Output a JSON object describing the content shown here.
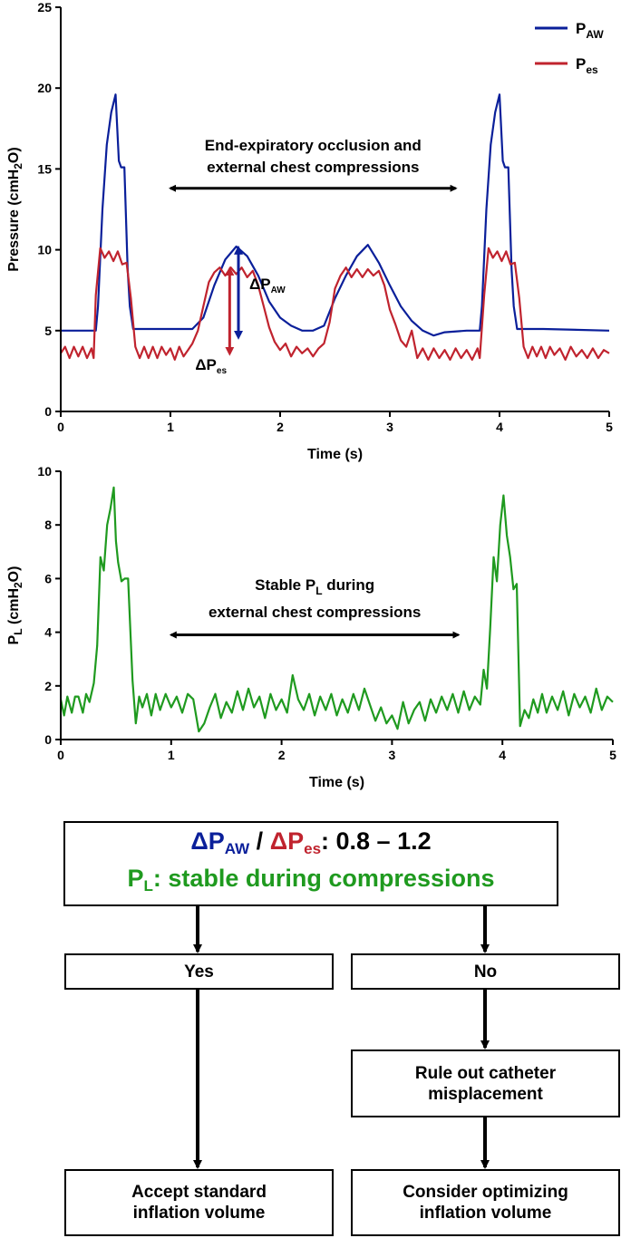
{
  "chart_data": [
    {
      "type": "line",
      "xlabel": "Time (s)",
      "ylabel": "Pressure (cmH2O)",
      "xlim": [
        0,
        5
      ],
      "ylim": [
        0,
        25
      ],
      "xticks": [
        "0",
        "1",
        "2",
        "3",
        "4",
        "5"
      ],
      "yticks": [
        "0",
        "5",
        "10",
        "15",
        "20",
        "25"
      ],
      "legend": {
        "position": "top-right",
        "entries": [
          {
            "label": "P",
            "sub": "AW",
            "color": "#0a1f9a"
          },
          {
            "label": "P",
            "sub": "es",
            "color": "#c0232e"
          }
        ]
      },
      "annotation": {
        "line1": "End-expiratory occlusion and",
        "line2": "external chest compressions",
        "arrow_from": 1.0,
        "arrow_to": 3.6,
        "y": 13.8
      },
      "delta_paw": {
        "label": "ΔP",
        "sub": "AW",
        "x": 1.62,
        "from": 4.6,
        "to": 10.1
      },
      "delta_pes": {
        "label": "ΔP",
        "sub": "es",
        "x": 1.54,
        "from": 3.6,
        "to": 8.8
      },
      "series": [
        {
          "name": "P_AW",
          "color": "#0a1f9a",
          "x": [
            0,
            0.32,
            0.34,
            0.38,
            0.42,
            0.46,
            0.5,
            0.53,
            0.55,
            0.58,
            0.61,
            0.63,
            0.66,
            0.7,
            0.9,
            1.2,
            1.3,
            1.4,
            1.5,
            1.6,
            1.7,
            1.8,
            1.9,
            2.0,
            2.1,
            2.2,
            2.3,
            2.4,
            2.5,
            2.6,
            2.7,
            2.8,
            2.9,
            3.0,
            3.1,
            3.2,
            3.3,
            3.4,
            3.5,
            3.7,
            3.82,
            3.84,
            3.88,
            3.92,
            3.96,
            4.0,
            4.03,
            4.05,
            4.08,
            4.11,
            4.13,
            4.16,
            4.2,
            4.4,
            5.0
          ],
          "y": [
            5.0,
            5.0,
            6.5,
            12.5,
            16.5,
            18.5,
            19.6,
            15.5,
            15.1,
            15.1,
            8.8,
            6.5,
            5.1,
            5.1,
            5.1,
            5.1,
            5.8,
            7.8,
            9.4,
            10.2,
            9.6,
            8.4,
            6.8,
            5.8,
            5.3,
            5.0,
            5.0,
            5.3,
            7.0,
            8.4,
            9.6,
            10.3,
            9.2,
            7.8,
            6.5,
            5.6,
            5.0,
            4.7,
            4.9,
            5.0,
            5.0,
            6.5,
            12.5,
            16.5,
            18.5,
            19.6,
            15.5,
            15.1,
            15.1,
            8.8,
            6.5,
            5.1,
            5.1,
            5.1,
            5.0
          ]
        },
        {
          "name": "P_es",
          "color": "#c0232e",
          "x": [
            0,
            0.04,
            0.08,
            0.12,
            0.16,
            0.2,
            0.24,
            0.28,
            0.3,
            0.32,
            0.36,
            0.4,
            0.44,
            0.48,
            0.52,
            0.56,
            0.6,
            0.64,
            0.68,
            0.72,
            0.76,
            0.8,
            0.84,
            0.88,
            0.92,
            0.96,
            1.0,
            1.04,
            1.08,
            1.12,
            1.16,
            1.2,
            1.25,
            1.3,
            1.35,
            1.4,
            1.45,
            1.5,
            1.55,
            1.6,
            1.65,
            1.7,
            1.75,
            1.8,
            1.85,
            1.9,
            1.95,
            2.0,
            2.05,
            2.1,
            2.15,
            2.2,
            2.25,
            2.3,
            2.35,
            2.4,
            2.45,
            2.5,
            2.55,
            2.6,
            2.65,
            2.7,
            2.75,
            2.8,
            2.85,
            2.9,
            2.95,
            3.0,
            3.05,
            3.1,
            3.15,
            3.2,
            3.25,
            3.3,
            3.35,
            3.4,
            3.45,
            3.5,
            3.55,
            3.6,
            3.65,
            3.7,
            3.75,
            3.8,
            3.82,
            3.86,
            3.9,
            3.94,
            3.98,
            4.02,
            4.06,
            4.1,
            4.14,
            4.18,
            4.22,
            4.26,
            4.3,
            4.34,
            4.38,
            4.42,
            4.46,
            4.5,
            4.55,
            4.6,
            4.65,
            4.7,
            4.75,
            4.8,
            4.85,
            4.9,
            4.95,
            5.0
          ],
          "y": [
            3.6,
            4.0,
            3.3,
            4.0,
            3.4,
            4.0,
            3.3,
            3.9,
            3.3,
            7.2,
            10.1,
            9.5,
            9.9,
            9.3,
            9.9,
            9.1,
            9.2,
            7.0,
            4.0,
            3.3,
            4.0,
            3.3,
            4.0,
            3.3,
            4.0,
            3.5,
            3.9,
            3.2,
            4.0,
            3.4,
            3.8,
            4.2,
            5.0,
            6.5,
            8.0,
            8.6,
            8.9,
            8.4,
            8.9,
            8.5,
            8.9,
            8.3,
            8.7,
            7.8,
            6.5,
            5.2,
            4.3,
            3.8,
            4.2,
            3.4,
            4.0,
            3.6,
            3.9,
            3.4,
            3.9,
            4.2,
            5.5,
            7.6,
            8.4,
            8.9,
            8.3,
            8.8,
            8.3,
            8.8,
            8.4,
            8.7,
            7.8,
            6.3,
            5.4,
            4.4,
            4.0,
            5.0,
            3.3,
            3.9,
            3.2,
            3.9,
            3.3,
            3.8,
            3.2,
            3.9,
            3.3,
            3.8,
            3.2,
            3.9,
            3.3,
            7.2,
            10.1,
            9.5,
            9.9,
            9.3,
            9.9,
            9.1,
            9.2,
            7.0,
            4.0,
            3.3,
            4.0,
            3.4,
            4.0,
            3.3,
            4.0,
            3.5,
            3.9,
            3.2,
            4.0,
            3.4,
            3.8,
            3.3,
            3.9,
            3.3,
            3.8,
            3.6
          ]
        }
      ]
    },
    {
      "type": "line",
      "xlabel": "Time (s)",
      "ylabel": "P",
      "ylabel_sub": "L",
      "ylabel_rest": " (cmH2O)",
      "xlim": [
        0,
        5
      ],
      "ylim": [
        0,
        10
      ],
      "xticks": [
        "0",
        "1",
        "2",
        "3",
        "4",
        "5"
      ],
      "yticks": [
        "0",
        "2",
        "4",
        "6",
        "8",
        "10"
      ],
      "annotation": {
        "line1_a": "Stable P",
        "line1_sub": "L",
        "line1_b": " during",
        "line2": "external chest compressions",
        "arrow_from": 1.0,
        "arrow_to": 3.6,
        "y": 3.9
      },
      "series": [
        {
          "name": "P_L",
          "color": "#1f9a1f",
          "x": [
            0,
            0.03,
            0.06,
            0.1,
            0.13,
            0.16,
            0.2,
            0.23,
            0.26,
            0.3,
            0.33,
            0.36,
            0.39,
            0.42,
            0.45,
            0.48,
            0.5,
            0.52,
            0.55,
            0.58,
            0.61,
            0.65,
            0.68,
            0.71,
            0.74,
            0.78,
            0.82,
            0.86,
            0.9,
            0.95,
            1.0,
            1.05,
            1.1,
            1.15,
            1.2,
            1.25,
            1.3,
            1.35,
            1.4,
            1.45,
            1.5,
            1.55,
            1.6,
            1.65,
            1.7,
            1.75,
            1.8,
            1.85,
            1.9,
            1.95,
            2.0,
            2.05,
            2.1,
            2.15,
            2.2,
            2.25,
            2.3,
            2.35,
            2.4,
            2.45,
            2.5,
            2.55,
            2.6,
            2.65,
            2.7,
            2.75,
            2.8,
            2.85,
            2.9,
            2.95,
            3.0,
            3.05,
            3.1,
            3.15,
            3.2,
            3.25,
            3.3,
            3.35,
            3.4,
            3.45,
            3.5,
            3.55,
            3.6,
            3.65,
            3.7,
            3.75,
            3.8,
            3.83,
            3.86,
            3.89,
            3.92,
            3.95,
            3.98,
            4.01,
            4.04,
            4.07,
            4.1,
            4.13,
            4.16,
            4.2,
            4.24,
            4.28,
            4.32,
            4.36,
            4.4,
            4.45,
            4.5,
            4.55,
            4.6,
            4.65,
            4.7,
            4.75,
            4.8,
            4.85,
            4.9,
            4.95,
            5.0
          ],
          "y": [
            1.5,
            0.9,
            1.6,
            1.0,
            1.6,
            1.6,
            1.0,
            1.7,
            1.4,
            2.1,
            3.5,
            6.8,
            6.3,
            8.0,
            8.6,
            9.4,
            7.4,
            6.6,
            5.9,
            6.0,
            6.0,
            2.2,
            0.6,
            1.6,
            1.2,
            1.7,
            0.9,
            1.7,
            1.1,
            1.7,
            1.2,
            1.6,
            1.0,
            1.7,
            1.5,
            0.3,
            0.6,
            1.2,
            1.7,
            0.8,
            1.4,
            1.0,
            1.8,
            1.1,
            1.9,
            1.2,
            1.6,
            0.8,
            1.7,
            1.1,
            1.5,
            1.0,
            2.4,
            1.5,
            1.1,
            1.7,
            0.9,
            1.6,
            1.1,
            1.7,
            0.9,
            1.5,
            1.0,
            1.7,
            1.1,
            1.9,
            1.3,
            0.7,
            1.2,
            0.6,
            0.9,
            0.4,
            1.4,
            0.6,
            1.1,
            1.4,
            0.7,
            1.5,
            1.0,
            1.6,
            1.1,
            1.7,
            1.0,
            1.8,
            1.1,
            1.6,
            1.3,
            2.6,
            1.9,
            4.2,
            6.8,
            5.9,
            8.0,
            9.1,
            7.6,
            6.8,
            5.6,
            5.8,
            0.5,
            1.1,
            0.8,
            1.5,
            1.0,
            1.7,
            1.0,
            1.6,
            1.1,
            1.8,
            0.9,
            1.7,
            1.2,
            1.6,
            1.0,
            1.9,
            1.1,
            1.6,
            1.4
          ]
        }
      ]
    }
  ],
  "flowchart": {
    "top_line1_a": "ΔP",
    "top_line1_a_sub": "AW",
    "top_line1_sep": " / ",
    "top_line1_b": "ΔP",
    "top_line1_b_sub": "es",
    "top_line1_rest": ": 0.8 – 1.2",
    "top_line2_a": "P",
    "top_line2_a_sub": "L",
    "top_line2_rest": ": stable during compressions",
    "yes_label": "Yes",
    "no_label": "No",
    "rule_out_line1": "Rule out catheter",
    "rule_out_line2": "misplacement",
    "accept_line1": "Accept standard",
    "accept_line2": "inflation volume",
    "consider_line1": "Consider optimizing",
    "consider_line2": "inflation volume"
  }
}
